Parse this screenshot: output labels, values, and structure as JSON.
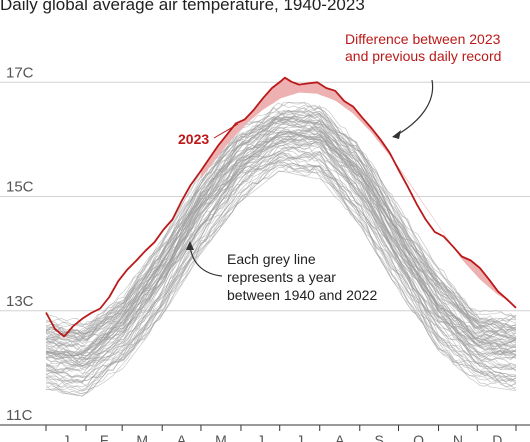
{
  "chart_data": {
    "type": "line",
    "title": "Daily global average air temperature, 1940-2023",
    "xlabel": "",
    "ylabel": "",
    "unit": "C",
    "ylim": [
      11,
      17.6
    ],
    "yticks": [
      {
        "value": 11,
        "label": "11C"
      },
      {
        "value": 13,
        "label": "13C"
      },
      {
        "value": 15,
        "label": "15C"
      },
      {
        "value": 17,
        "label": "17C"
      }
    ],
    "months": [
      "J",
      "F",
      "M",
      "A",
      "M",
      "J",
      "J",
      "A",
      "S",
      "O",
      "N",
      "D"
    ],
    "grid": true,
    "series": [
      {
        "name": "2023",
        "color": "#bb1919",
        "x": [
          0,
          7,
          14,
          21,
          28,
          35,
          42,
          49,
          56,
          63,
          70,
          77,
          84,
          91,
          98,
          105,
          112,
          119,
          126,
          133,
          140,
          147,
          154,
          161,
          168,
          175,
          182,
          185,
          190,
          196,
          203,
          210,
          217,
          224,
          231,
          238,
          245,
          252,
          259,
          266,
          273,
          280,
          287,
          294,
          301,
          308,
          315,
          322,
          329,
          336,
          343,
          350,
          357,
          364
        ],
        "values": [
          12.97,
          12.68,
          12.55,
          12.73,
          12.86,
          12.96,
          13.04,
          13.24,
          13.52,
          13.72,
          13.88,
          14.05,
          14.2,
          14.42,
          14.6,
          14.92,
          15.2,
          15.42,
          15.65,
          15.88,
          16.08,
          16.28,
          16.35,
          16.52,
          16.72,
          16.9,
          17.02,
          17.08,
          17.01,
          16.96,
          16.98,
          17.0,
          16.9,
          16.85,
          16.67,
          16.57,
          16.38,
          16.2,
          16.0,
          15.77,
          15.47,
          15.18,
          14.87,
          14.6,
          14.38,
          14.3,
          14.13,
          13.95,
          13.88,
          13.75,
          13.55,
          13.34,
          13.2,
          13.05
        ]
      },
      {
        "name": "Previous daily record",
        "color": "#e7a9aa",
        "x": [
          0,
          14,
          28,
          42,
          56,
          70,
          84,
          98,
          112,
          126,
          140,
          154,
          168,
          182,
          196,
          210,
          224,
          238,
          252,
          266,
          280,
          294,
          308,
          322,
          336,
          350,
          364
        ],
        "values": [
          13.02,
          12.96,
          13.08,
          13.25,
          13.48,
          13.75,
          14.1,
          14.58,
          15.05,
          15.5,
          15.9,
          16.25,
          16.52,
          16.72,
          16.82,
          16.8,
          16.68,
          16.45,
          16.12,
          15.72,
          15.3,
          14.82,
          14.35,
          13.9,
          13.55,
          13.28,
          13.1
        ]
      }
    ],
    "grey_lines": {
      "name": "1940-2022",
      "count": 83,
      "color": "#9a9a9a",
      "x": [
        0,
        30,
        60,
        90,
        120,
        150,
        181,
        212,
        243,
        273,
        304,
        334,
        364
      ],
      "typical": [
        12.1,
        12.0,
        12.5,
        13.4,
        14.6,
        15.5,
        15.95,
        15.8,
        15.0,
        13.9,
        12.85,
        12.2,
        12.1
      ],
      "lowest": [
        11.6,
        11.5,
        12.0,
        12.9,
        14.0,
        14.9,
        15.45,
        15.3,
        14.5,
        13.35,
        12.3,
        11.7,
        11.6
      ],
      "highest": [
        12.95,
        12.85,
        13.35,
        14.25,
        15.45,
        16.3,
        16.65,
        16.65,
        15.95,
        14.85,
        13.8,
        13.05,
        12.95
      ]
    },
    "annotations": [
      {
        "name": "record-difference",
        "lines": [
          "Difference between 2023",
          "and previous daily record"
        ],
        "color": "#bb1919"
      },
      {
        "name": "grey-lines",
        "lines": [
          "Each grey line",
          "represents a year",
          "between 1940 and 2022"
        ],
        "color": "#222222"
      },
      {
        "name": "series-2023",
        "lines": [
          "2023"
        ],
        "color": "#bb1919"
      }
    ]
  }
}
